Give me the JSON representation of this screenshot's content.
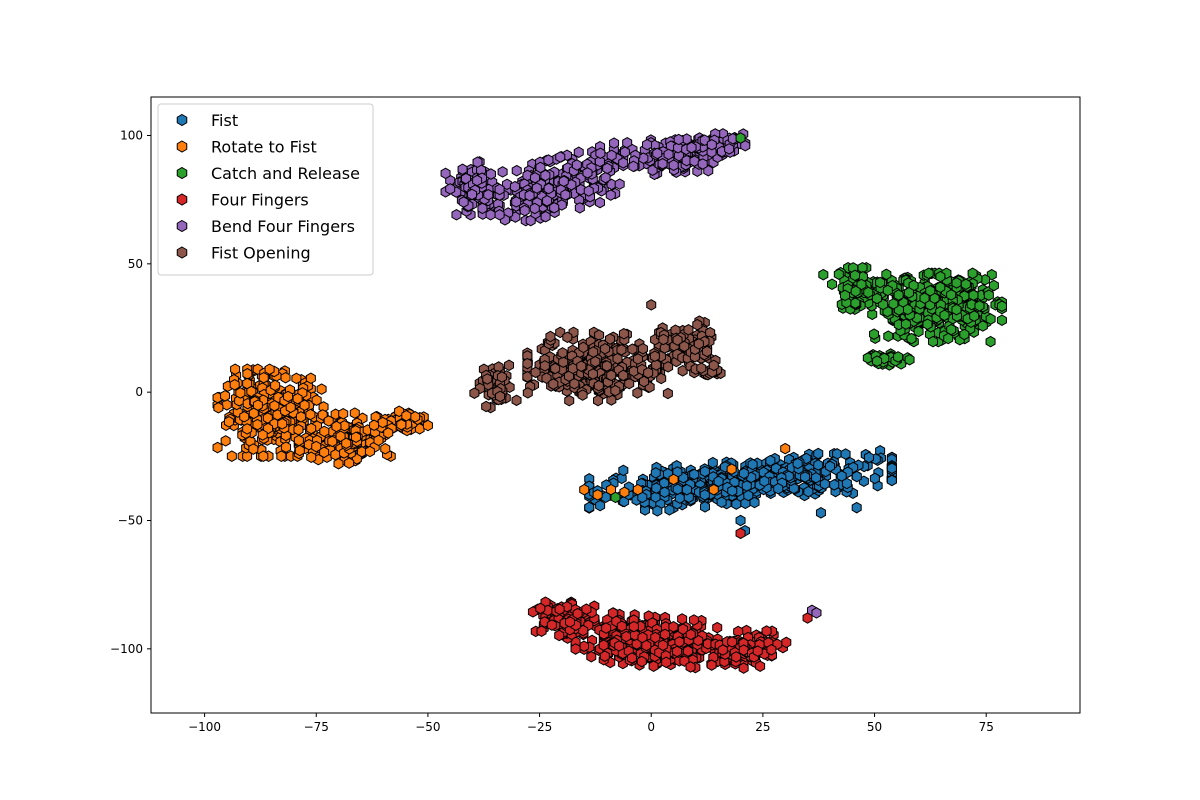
{
  "chart_data": {
    "type": "scatter",
    "title": "",
    "xlabel": "",
    "ylabel": "",
    "xlim": [
      -112,
      96
    ],
    "ylim": [
      -125,
      115
    ],
    "xticks": [
      -100,
      -75,
      -50,
      -25,
      0,
      25,
      50,
      75
    ],
    "yticks": [
      -100,
      -50,
      0,
      50,
      100
    ],
    "x_tick_labels": [
      "−100",
      "−75",
      "−50",
      "−25",
      "0",
      "25",
      "50",
      "75"
    ],
    "y_tick_labels": [
      "−100",
      "−50",
      "0",
      "50",
      "100"
    ],
    "grid": false,
    "legend_position": "top-left",
    "marker": "hexagon",
    "marker_edge_color": "#000000",
    "series": [
      {
        "name": "Fist",
        "color": "#1f77b4",
        "clusters": [
          {
            "cx": 20,
            "cy": -35,
            "sx": 28,
            "sy": 7,
            "tilt": 0.15,
            "count": 520
          }
        ],
        "x": [
          -5,
          -2,
          3,
          8,
          12,
          20,
          21,
          38,
          46
        ],
        "y": [
          -37,
          -41,
          -39,
          -38,
          -40,
          -50,
          -54,
          -47,
          -45
        ]
      },
      {
        "name": "Rotate to Fist",
        "color": "#ff7f0e",
        "clusters": [
          {
            "cx": -85,
            "cy": -8,
            "sx": 10,
            "sy": 14,
            "tilt": 0,
            "count": 330
          },
          {
            "cx": -68,
            "cy": -18,
            "sx": 9,
            "sy": 8,
            "tilt": 0.1,
            "count": 160
          },
          {
            "cx": -56,
            "cy": -12,
            "sx": 5,
            "sy": 4,
            "tilt": 0.2,
            "count": 60
          }
        ],
        "x": [
          -15,
          -12,
          -9,
          -6,
          -3,
          5,
          14,
          18,
          30
        ],
        "y": [
          -38,
          -40,
          -38,
          -39,
          -38,
          -34,
          -38,
          -30,
          -22
        ]
      },
      {
        "name": "Catch and Release",
        "color": "#2ca02c",
        "clusters": [
          {
            "cx": 64,
            "cy": 33,
            "sx": 12,
            "sy": 11,
            "tilt": 0,
            "count": 360
          },
          {
            "cx": 47,
            "cy": 40,
            "sx": 7,
            "sy": 7,
            "tilt": 0,
            "count": 90
          },
          {
            "cx": 53,
            "cy": 13,
            "sx": 4,
            "sy": 2,
            "tilt": 0,
            "count": 30
          }
        ],
        "x": [
          -8,
          20
        ],
        "y": [
          -41,
          99
        ]
      },
      {
        "name": "Four Fingers",
        "color": "#d62728",
        "clusters": [
          {
            "cx": 0,
            "cy": -97,
            "sx": 14,
            "sy": 8,
            "tilt": -0.15,
            "count": 380
          },
          {
            "cx": -20,
            "cy": -88,
            "sx": 6,
            "sy": 7,
            "tilt": 0,
            "count": 100
          },
          {
            "cx": 22,
            "cy": -100,
            "sx": 7,
            "sy": 6,
            "tilt": 0.2,
            "count": 110
          }
        ],
        "x": [
          20,
          35
        ],
        "y": [
          -55,
          -88
        ]
      },
      {
        "name": "Bend Four Fingers",
        "color": "#9467bd",
        "clusters": [
          {
            "cx": -22,
            "cy": 80,
            "sx": 13,
            "sy": 9,
            "tilt": 0.45,
            "count": 300
          },
          {
            "cx": -40,
            "cy": 80,
            "sx": 5,
            "sy": 9,
            "tilt": 0,
            "count": 90
          },
          {
            "cx": 5,
            "cy": 92,
            "sx": 9,
            "sy": 6,
            "tilt": 0.2,
            "count": 130
          },
          {
            "cx": 15,
            "cy": 97,
            "sx": 5,
            "sy": 3,
            "tilt": 0,
            "count": 50
          }
        ],
        "x": [
          36,
          37
        ],
        "y": [
          -85,
          -86
        ]
      },
      {
        "name": "Fist Opening",
        "color": "#8c564b",
        "clusters": [
          {
            "cx": -12,
            "cy": 10,
            "sx": 13,
            "sy": 11,
            "tilt": 0,
            "count": 320
          },
          {
            "cx": 8,
            "cy": 18,
            "sx": 6,
            "sy": 8,
            "tilt": 0,
            "count": 90
          },
          {
            "cx": -35,
            "cy": 2,
            "sx": 4,
            "sy": 7,
            "tilt": 0,
            "count": 50
          },
          {
            "cx": 13,
            "cy": 8,
            "sx": 3,
            "sy": 2,
            "tilt": 0,
            "count": 20
          }
        ],
        "x": [
          0
        ],
        "y": [
          34
        ]
      }
    ]
  }
}
